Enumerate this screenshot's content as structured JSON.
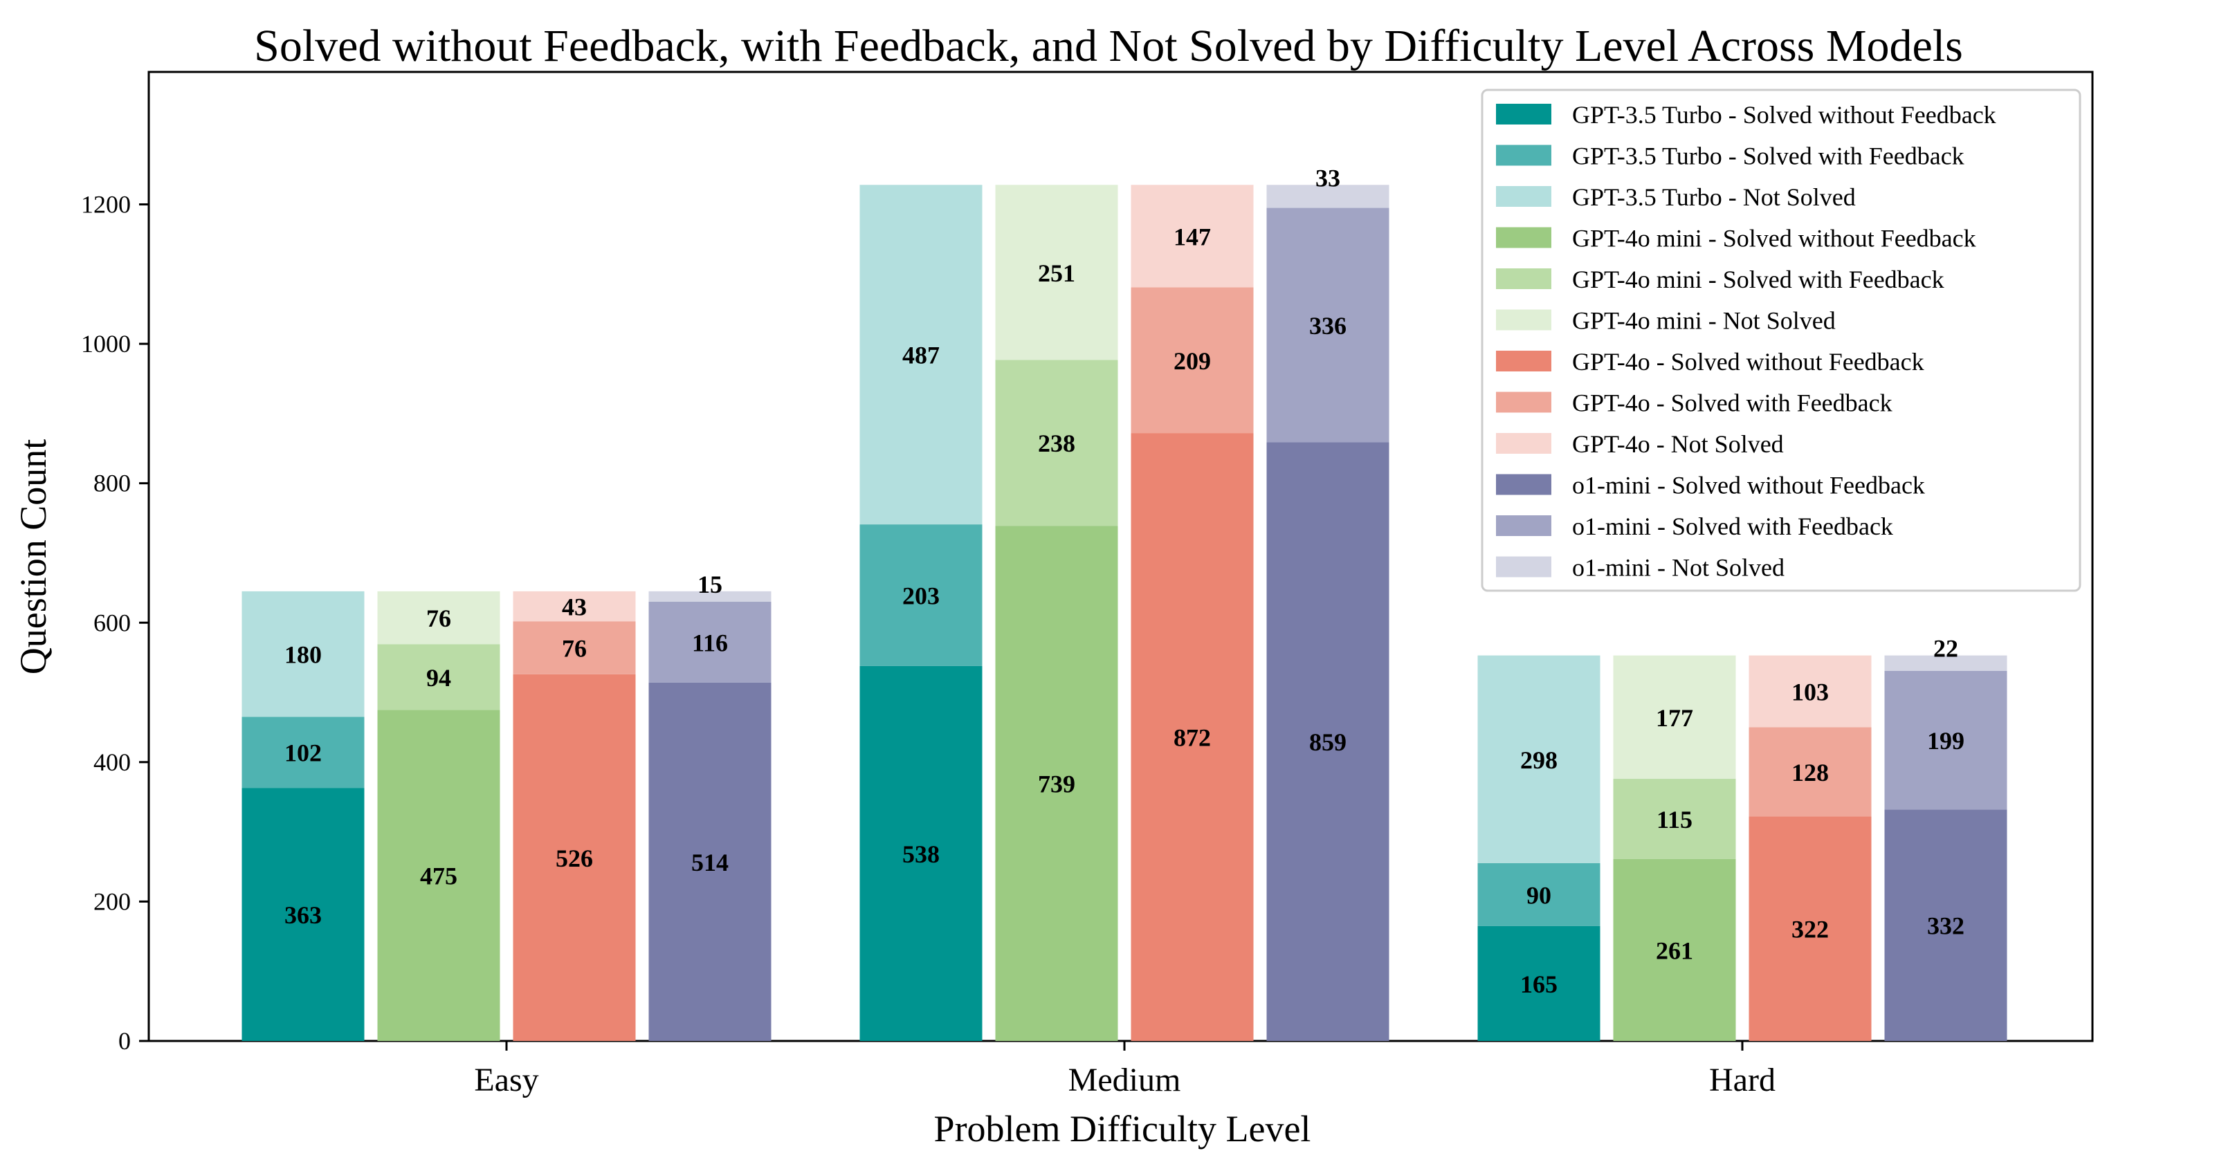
{
  "chart_data": {
    "type": "bar",
    "stacked": true,
    "title": "Solved without Feedback, with Feedback, and Not Solved by Difficulty Level Across Models",
    "xlabel": "Problem Difficulty Level",
    "ylabel": "Question Count",
    "categories": [
      "Easy",
      "Medium",
      "Hard"
    ],
    "ylim": [
      0,
      1390
    ],
    "yticks": [
      0,
      200,
      400,
      600,
      800,
      1000,
      1200
    ],
    "legend_position": "upper right",
    "segment_types": [
      "Solved without Feedback",
      "Solved with Feedback",
      "Not Solved"
    ],
    "models": [
      {
        "name": "GPT-3.5 Turbo",
        "colors": [
          "#009490",
          "#4fb3b1",
          "#b3dfde"
        ],
        "legend_labels": [
          "GPT-3.5 Turbo - Solved without Feedback",
          "GPT-3.5 Turbo - Solved with Feedback",
          "GPT-3.5 Turbo - Not Solved"
        ],
        "values": [
          [
            363,
            102,
            180
          ],
          [
            538,
            203,
            487
          ],
          [
            165,
            90,
            298
          ]
        ]
      },
      {
        "name": "GPT-4o mini",
        "colors": [
          "#9ccb82",
          "#badca6",
          "#e0efd6"
        ],
        "legend_labels": [
          "GPT-4o mini - Solved without Feedback",
          "GPT-4o mini - Solved with Feedback",
          "GPT-4o mini - Not Solved"
        ],
        "values": [
          [
            475,
            94,
            76
          ],
          [
            739,
            238,
            251
          ],
          [
            261,
            115,
            177
          ]
        ]
      },
      {
        "name": "GPT-4o",
        "colors": [
          "#eb8572",
          "#efa799",
          "#f8d6d0"
        ],
        "legend_labels": [
          "GPT-4o - Solved without Feedback",
          "GPT-4o - Solved with Feedback",
          "GPT-4o - Not Solved"
        ],
        "values": [
          [
            526,
            76,
            43
          ],
          [
            872,
            209,
            147
          ],
          [
            322,
            128,
            103
          ]
        ]
      },
      {
        "name": "o1-mini",
        "colors": [
          "#787ca8",
          "#a1a4c4",
          "#d3d5e3"
        ],
        "legend_labels": [
          "o1-mini - Solved without Feedback",
          "o1-mini - Solved with Feedback",
          "o1-mini - Not Solved"
        ],
        "values": [
          [
            514,
            116,
            15
          ],
          [
            859,
            336,
            33
          ],
          [
            332,
            199,
            22
          ]
        ]
      }
    ]
  }
}
